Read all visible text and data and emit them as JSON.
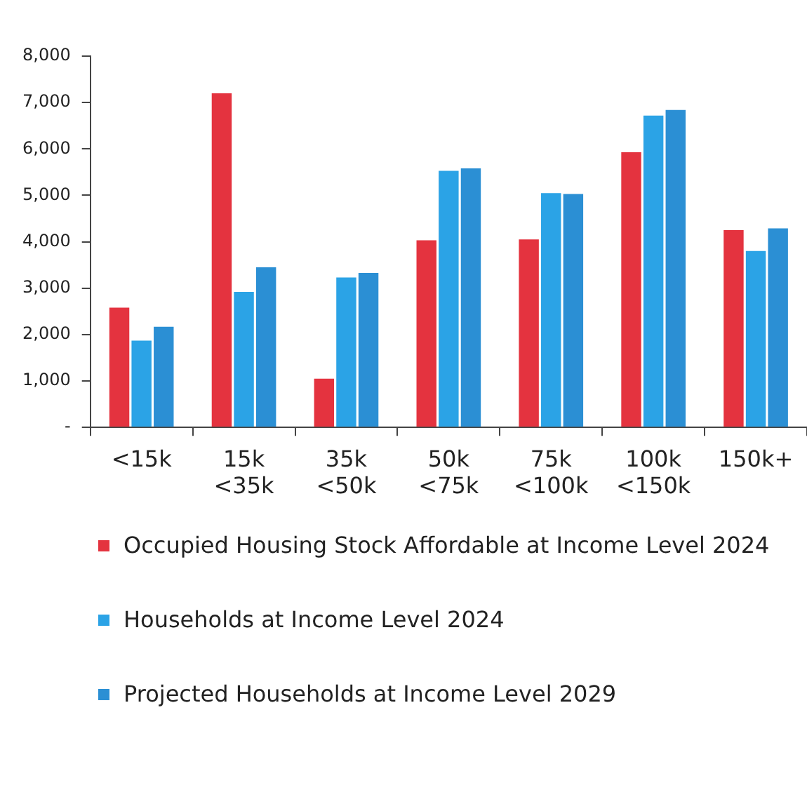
{
  "chart_data": {
    "type": "bar",
    "categories": [
      "<15k",
      "15k\n<35k",
      "35k\n<50k",
      "50k\n<75k",
      "75k\n<100k",
      "100k\n<150k",
      "150k+"
    ],
    "series": [
      {
        "name": "Occupied Housing Stock Affordable at Income Level 2024",
        "color": "#e4333f",
        "values": [
          2580,
          7200,
          1050,
          4030,
          4050,
          5930,
          4250
        ]
      },
      {
        "name": "Households at Income Level 2024",
        "color": "#2ba3e6",
        "values": [
          1870,
          2920,
          3230,
          5530,
          5050,
          6720,
          3800
        ]
      },
      {
        "name": "Projected Households at Income Level 2029",
        "color": "#2b8fd4",
        "values": [
          2170,
          3450,
          3330,
          5580,
          5030,
          6840,
          4290
        ]
      }
    ],
    "ylim": [
      0,
      8000
    ],
    "yticks": [
      {
        "value": 0,
        "label": "-"
      },
      {
        "value": 1000,
        "label": "1,000"
      },
      {
        "value": 2000,
        "label": "2,000"
      },
      {
        "value": 3000,
        "label": "3,000"
      },
      {
        "value": 4000,
        "label": "4,000"
      },
      {
        "value": 5000,
        "label": "5,000"
      },
      {
        "value": 6000,
        "label": "6,000"
      },
      {
        "value": 7000,
        "label": "7,000"
      },
      {
        "value": 8000,
        "label": "8,000"
      }
    ],
    "grid": false,
    "legend": "bottom"
  }
}
